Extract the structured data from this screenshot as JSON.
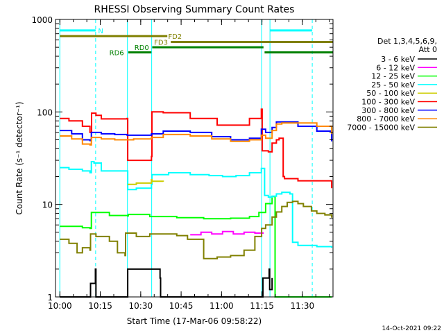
{
  "chart_data": {
    "type": "line",
    "title": "RHESSI Observing Summary Count Rates",
    "xlabel": "Start Time (17-Mar-06 09:58:22)",
    "ylabel": "Count Rate (s⁻¹ detector⁻¹)",
    "y_scale": "log",
    "ylim": [
      1,
      1000
    ],
    "x_unit": "minutes",
    "xlim": [
      0,
      103
    ],
    "x_ticks": [
      {
        "value": 1.63,
        "label": "10:00"
      },
      {
        "value": 16.63,
        "label": "10:15"
      },
      {
        "value": 31.63,
        "label": "10:30"
      },
      {
        "value": 46.63,
        "label": "10:45"
      },
      {
        "value": 61.63,
        "label": "11:00"
      },
      {
        "value": 76.63,
        "label": "11:15"
      },
      {
        "value": 91.63,
        "label": "11:30"
      }
    ],
    "y_ticks": [
      {
        "value": 1,
        "label": "1"
      },
      {
        "value": 10,
        "label": "10"
      },
      {
        "value": 100,
        "label": "100"
      },
      {
        "value": 1000,
        "label": "1000"
      }
    ],
    "legend_header": [
      "Det 1,3,4,5,6,9,",
      "Att 0"
    ],
    "legend_position": "right",
    "series": [
      {
        "name": "3 - 6 keV",
        "color": "#000000",
        "x": [
          1.6,
          12.8,
          13.0,
          14.8,
          15.0,
          26.6,
          26.8,
          38.8,
          39.0,
          76.8,
          77.0,
          79.3,
          79.5,
          80.4
        ],
        "y": [
          1,
          1,
          1.4,
          2,
          1,
          1,
          2,
          1.6,
          1,
          1,
          1.6,
          2,
          1.2,
          1.6
        ]
      },
      {
        "name": "6 - 12 keV",
        "color": "#ff00ff",
        "x": [
          50,
          54,
          58,
          62,
          66,
          70,
          74,
          77
        ],
        "y": [
          4.7,
          5.0,
          4.8,
          5.1,
          4.8,
          5.0,
          4.9,
          5.0
        ]
      },
      {
        "name": "12 - 25 keV",
        "color": "#00ff00",
        "x": [
          1.6,
          10,
          12.8,
          13.3,
          20,
          26.8,
          27.0,
          35,
          45,
          55,
          65,
          72,
          75.5,
          78,
          80.4,
          81.5,
          82,
          90,
          97,
          102.5
        ],
        "y": [
          5.8,
          5.6,
          5.5,
          8.2,
          7.6,
          7.5,
          7.8,
          7.4,
          7.2,
          7.0,
          7.1,
          7.4,
          8.2,
          10.2,
          12.2,
          1.0,
          1.0,
          1.0,
          1.0,
          1.0
        ]
      },
      {
        "name": "25 - 50 keV",
        "color": "#00ffff",
        "x": [
          1.6,
          5,
          10,
          12.8,
          13.3,
          14.3,
          17,
          20,
          26.6,
          26.8,
          30,
          35.6,
          35.8,
          42,
          50,
          57,
          62,
          67,
          72,
          76.4,
          77.6,
          79,
          80.4,
          82,
          84,
          87,
          88,
          90,
          97,
          102.5
        ],
        "y": [
          25,
          24,
          23,
          22,
          29,
          28,
          23,
          23,
          23,
          14.5,
          15,
          16.5,
          21,
          22,
          21,
          20.5,
          20,
          20.5,
          22,
          24.5,
          12.5,
          12,
          12.3,
          13,
          13.5,
          13,
          3.9,
          3.6,
          3.5,
          3.4
        ]
      },
      {
        "name": "50 - 100 keV",
        "color": "#cccc00",
        "x": [
          26.8,
          30,
          35.6,
          35.8,
          40
        ],
        "y": [
          16.5,
          17,
          18.5,
          17.8,
          17.6
        ]
      },
      {
        "name": "100 - 300 keV",
        "color": "#ff0000",
        "x": [
          1.6,
          5,
          10,
          12.8,
          13.4,
          15,
          17,
          20,
          26.6,
          26.8,
          35.6,
          35.8,
          40,
          50,
          60,
          66,
          72,
          76.4,
          76.7,
          79,
          80.4,
          82,
          83,
          84.5,
          85,
          90,
          97,
          102.5
        ],
        "y": [
          85,
          80,
          70,
          60,
          97,
          92,
          84,
          84,
          85,
          30,
          33,
          100,
          98,
          85,
          72,
          72,
          85,
          107,
          38,
          37,
          46,
          50,
          52,
          20,
          19,
          18,
          18,
          15
        ]
      },
      {
        "name": "300 - 800 keV",
        "color": "#0000ff",
        "x": [
          1.6,
          6,
          10,
          12.8,
          13.3,
          17,
          22,
          26.6,
          29,
          35.6,
          40,
          50,
          58,
          65,
          72,
          76.4,
          78,
          80.4,
          82,
          84,
          90,
          97,
          102.5
        ],
        "y": [
          63,
          58,
          50,
          49,
          60,
          58,
          57,
          56,
          56,
          58,
          62,
          60,
          54,
          50,
          52,
          65,
          60,
          68,
          78,
          78,
          70,
          62,
          48
        ]
      },
      {
        "name": "800 - 7000 keV",
        "color": "#ff8800",
        "x": [
          1.6,
          6,
          10,
          12.8,
          13.3,
          17,
          22,
          26.6,
          29,
          35.6,
          40,
          50,
          58,
          65,
          72,
          76.4,
          78,
          80.4,
          82,
          84,
          90,
          97,
          102.5
        ],
        "y": [
          55,
          51,
          45,
          44,
          53,
          51,
          50,
          50,
          51,
          53,
          57,
          55,
          51,
          48,
          50,
          56,
          52,
          63,
          74,
          76,
          76,
          70,
          58
        ]
      },
      {
        "name": "7000 - 15000 keV",
        "color": "#808000",
        "x": [
          1.6,
          5,
          8,
          10,
          12.8,
          13.0,
          15,
          20,
          23,
          25.8,
          26.0,
          30,
          35,
          40,
          45,
          49,
          55,
          60,
          65,
          70,
          74,
          76.5,
          78,
          80.4,
          82,
          84,
          86,
          88,
          90,
          92,
          95,
          97,
          100,
          102.5
        ],
        "y": [
          4.2,
          3.8,
          3.0,
          3.4,
          3.2,
          4.8,
          4.5,
          4.0,
          3.0,
          2.8,
          4.9,
          4.5,
          4.8,
          4.8,
          4.6,
          4.2,
          2.6,
          2.7,
          2.8,
          3.2,
          4.5,
          5.5,
          6.0,
          7.3,
          8.3,
          9.5,
          10.5,
          10.8,
          10.2,
          9.5,
          8.5,
          8.0,
          7.7,
          7.2
        ]
      }
    ],
    "state_bands": [
      {
        "name": "N",
        "label": "N",
        "color": "#00ffff",
        "y": 760,
        "segments": [
          [
            1.6,
            14.9
          ],
          [
            79.6,
            95.3
          ]
        ],
        "label_at": 15.8
      },
      {
        "name": "FD2",
        "label": "FD2",
        "color": "#808000",
        "y": 660,
        "segments": [
          [
            1.6,
            41.5
          ]
        ],
        "label_at": 41.8
      },
      {
        "name": "FD3",
        "label": "FD3",
        "color": "#808000",
        "y": 570,
        "segments": [
          [
            42.8,
            103
          ]
        ],
        "label_at": 36.6
      },
      {
        "name": "RD0",
        "label": "RD0",
        "color": "#008000",
        "y": 500,
        "segments": [
          [
            35.9,
            77.2
          ]
        ],
        "label_at": 29.3
      },
      {
        "name": "RD6",
        "label": "RD6",
        "color": "#008000",
        "y": 440,
        "segments": [
          [
            27.0,
            35.6
          ],
          [
            77.6,
            103
          ]
        ],
        "label_at": 20.0
      }
    ],
    "vertical_markers": [
      {
        "x": 1.6,
        "color": "#00ffff",
        "style": "solid"
      },
      {
        "x": 14.9,
        "color": "#00ffff",
        "style": "dashed"
      },
      {
        "x": 26.7,
        "color": "#00ffff",
        "style": "solid"
      },
      {
        "x": 35.7,
        "color": "#00ffff",
        "style": "solid"
      },
      {
        "x": 76.5,
        "color": "#00ffff",
        "style": "solid"
      },
      {
        "x": 79.6,
        "color": "#00ffff",
        "style": "solid"
      },
      {
        "x": 95.3,
        "color": "#00ffff",
        "style": "dashed"
      }
    ],
    "grid": false
  },
  "footer": {
    "timestamp": "14-Oct-2021 09:22"
  }
}
